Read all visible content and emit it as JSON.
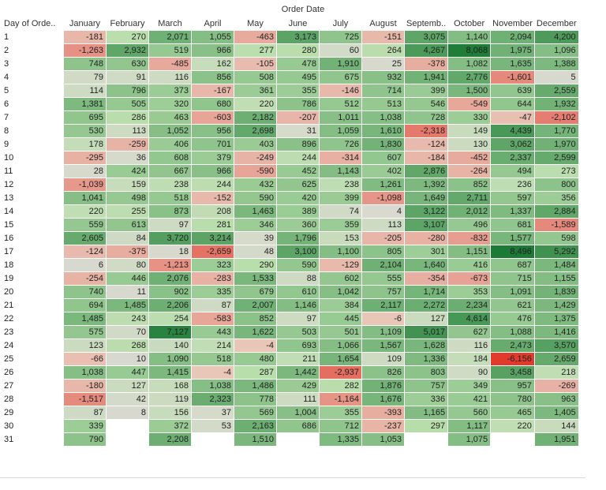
{
  "chart_data": {
    "type": "heatmap",
    "title": "Order Date",
    "row_header": "Day of Orde..",
    "columns": [
      "January",
      "February",
      "March",
      "April",
      "May",
      "June",
      "July",
      "August",
      "Septemb..",
      "October",
      "November",
      "December"
    ],
    "rows": [
      "1",
      "2",
      "3",
      "4",
      "5",
      "6",
      "7",
      "8",
      "9",
      "10",
      "11",
      "12",
      "13",
      "14",
      "15",
      "16",
      "17",
      "18",
      "19",
      "20",
      "21",
      "22",
      "23",
      "24",
      "25",
      "26",
      "27",
      "28",
      "29",
      "30",
      "31"
    ],
    "values": [
      [
        -181,
        270,
        2071,
        1055,
        -463,
        3173,
        725,
        -151,
        3075,
        1140,
        2094,
        4200
      ],
      [
        -1263,
        2932,
        519,
        966,
        277,
        280,
        60,
        264,
        4267,
        8068,
        1975,
        1096
      ],
      [
        748,
        630,
        -485,
        162,
        -105,
        478,
        1910,
        25,
        -378,
        1082,
        1635,
        1388
      ],
      [
        79,
        91,
        116,
        856,
        508,
        495,
        675,
        932,
        1941,
        2776,
        -1601,
        5
      ],
      [
        114,
        796,
        373,
        -167,
        361,
        355,
        -146,
        714,
        399,
        1500,
        639,
        2559
      ],
      [
        1381,
        505,
        320,
        680,
        220,
        786,
        512,
        513,
        546,
        -549,
        644,
        1932
      ],
      [
        695,
        286,
        463,
        -603,
        2182,
        -207,
        1011,
        1038,
        728,
        330,
        -47,
        -2102
      ],
      [
        530,
        113,
        1052,
        956,
        2698,
        31,
        1059,
        1610,
        -2318,
        149,
        4439,
        1770
      ],
      [
        178,
        -259,
        406,
        701,
        403,
        896,
        726,
        1830,
        -124,
        130,
        3062,
        1970
      ],
      [
        -295,
        36,
        608,
        379,
        -249,
        244,
        -314,
        607,
        -184,
        -452,
        2337,
        2599
      ],
      [
        28,
        424,
        667,
        966,
        -590,
        452,
        1143,
        402,
        2876,
        -264,
        494,
        273
      ],
      [
        -1039,
        159,
        238,
        244,
        432,
        625,
        238,
        1261,
        1392,
        852,
        236,
        800
      ],
      [
        1041,
        498,
        518,
        -152,
        590,
        420,
        399,
        -1098,
        1649,
        2711,
        597,
        356
      ],
      [
        220,
        255,
        873,
        208,
        1463,
        389,
        74,
        4,
        3122,
        2012,
        1337,
        2884
      ],
      [
        559,
        613,
        97,
        281,
        346,
        360,
        359,
        113,
        3107,
        496,
        681,
        -1589
      ],
      [
        2605,
        84,
        3720,
        3214,
        39,
        1796,
        153,
        -205,
        -280,
        -832,
        1577,
        598
      ],
      [
        -124,
        -375,
        18,
        -2659,
        48,
        3100,
        1100,
        805,
        301,
        1151,
        8496,
        5292
      ],
      [
        6,
        80,
        -1213,
        323,
        290,
        590,
        -129,
        2104,
        1640,
        416,
        687,
        1484
      ],
      [
        -254,
        446,
        2076,
        -283,
        1533,
        88,
        602,
        555,
        -354,
        -673,
        715,
        1155
      ],
      [
        740,
        11,
        902,
        335,
        679,
        610,
        1042,
        757,
        1714,
        353,
        1091,
        1839
      ],
      [
        694,
        1485,
        2206,
        87,
        2007,
        1146,
        384,
        2117,
        2272,
        2234,
        621,
        1429
      ],
      [
        1485,
        243,
        254,
        -583,
        852,
        97,
        445,
        -6,
        127,
        4614,
        476,
        1375
      ],
      [
        575,
        70,
        7127,
        443,
        1622,
        503,
        501,
        1109,
        5017,
        627,
        1088,
        1416
      ],
      [
        123,
        268,
        140,
        214,
        -4,
        693,
        1066,
        1567,
        1628,
        116,
        2473,
        3570
      ],
      [
        -66,
        10,
        1090,
        518,
        480,
        211,
        1654,
        109,
        1336,
        184,
        -6156,
        2659
      ],
      [
        1038,
        447,
        1415,
        -4,
        287,
        1442,
        -2937,
        826,
        803,
        90,
        3458,
        218
      ],
      [
        -180,
        127,
        168,
        1038,
        1486,
        429,
        282,
        1876,
        757,
        349,
        957,
        -269
      ],
      [
        -1517,
        42,
        119,
        2323,
        778,
        111,
        -1164,
        1676,
        336,
        421,
        780,
        963
      ],
      [
        87,
        8,
        156,
        37,
        569,
        1004,
        355,
        -393,
        1165,
        560,
        465,
        1405
      ],
      [
        339,
        null,
        372,
        53,
        2163,
        686,
        712,
        -237,
        297,
        1117,
        220,
        144
      ],
      [
        790,
        null,
        2208,
        null,
        1510,
        null,
        1335,
        1053,
        null,
        1075,
        null,
        1951
      ]
    ],
    "color_scale": {
      "negative_max": -6156,
      "positive_max": 8496,
      "negative_color": "#e23b2e",
      "neutral_color": "#d9d9cf",
      "positive_color": "#1b7a35"
    }
  }
}
